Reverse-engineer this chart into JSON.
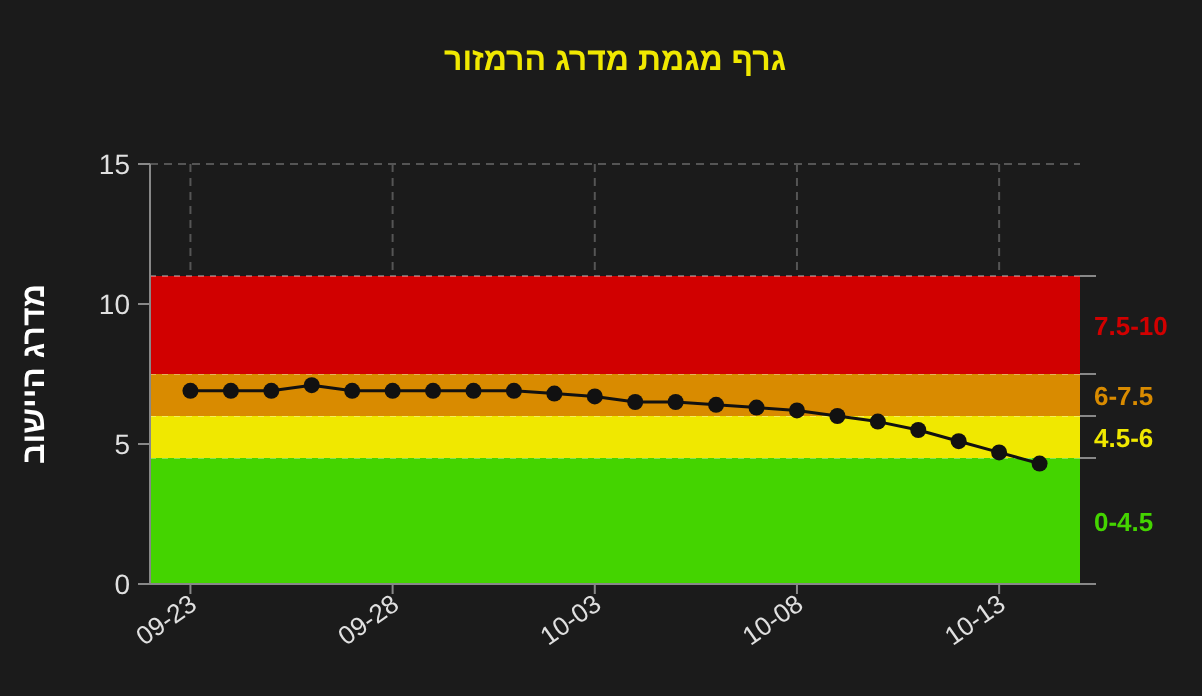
{
  "chart_data": {
    "type": "line",
    "title": "גרף מגמת מדרג הרמזור",
    "ylabel": "מדרג היישוב",
    "x": [
      "--09-23",
      "--09-24",
      "--09-25",
      "--09-26",
      "--09-27",
      "--09-28",
      "--09-29",
      "--09-30",
      "--10-01",
      "--10-02",
      "--10-03",
      "--10-04",
      "--10-05",
      "--10-06",
      "--10-07",
      "--10-08",
      "--10-09",
      "--10-10",
      "--10-11",
      "--10-12",
      "--10-13",
      "--10-14"
    ],
    "series": [
      {
        "color": "#111111",
        "values": [
          6.9,
          6.9,
          6.9,
          7.1,
          6.9,
          6.9,
          6.9,
          6.9,
          6.9,
          6.8,
          6.7,
          6.5,
          6.5,
          6.4,
          6.3,
          6.2,
          6.0,
          5.8,
          5.5,
          5.1,
          4.7,
          4.3
        ]
      }
    ],
    "xlim": [
      "--09-22",
      "--10-15"
    ],
    "xticks": [
      {
        "value": "--09-23",
        "label": "09-23"
      },
      {
        "value": "--09-28",
        "label": "09-28"
      },
      {
        "value": "--10-03",
        "label": "10-03"
      },
      {
        "value": "--10-08",
        "label": "10-08"
      },
      {
        "value": "--10-13",
        "label": "10-13"
      }
    ],
    "ylim": [
      0,
      15
    ],
    "yticks": [
      0,
      5,
      10,
      15
    ],
    "bands": [
      {
        "axis": "y",
        "from": 0,
        "to": 4.5,
        "label": "0-4.5",
        "color": "#44d400"
      },
      {
        "axis": "y",
        "from": 4.5,
        "to": 6,
        "label": "4.5-6",
        "color": "#f0e800"
      },
      {
        "axis": "y",
        "from": 6,
        "to": 7.5,
        "label": "6-7.5",
        "color": "#d98b00"
      },
      {
        "axis": "y",
        "from": 7.5,
        "to": 11,
        "label": "7.5-10",
        "color": "#d10000"
      }
    ],
    "grid": true,
    "marker": "circle",
    "line_style": "solid"
  }
}
